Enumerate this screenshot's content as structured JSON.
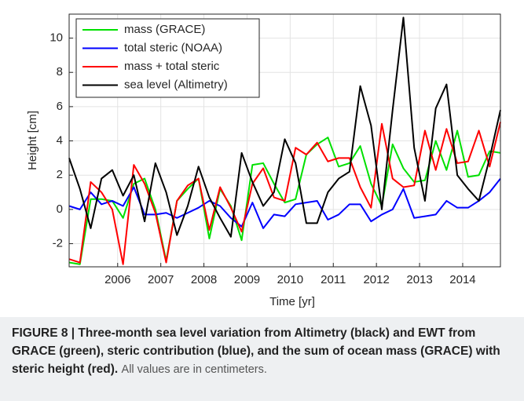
{
  "chart_data": {
    "type": "line",
    "xlabel": "Time [yr]",
    "ylabel": "Height [cm]",
    "x": [
      2004.875,
      2005.125,
      2005.375,
      2005.625,
      2005.875,
      2006.125,
      2006.375,
      2006.625,
      2006.875,
      2007.125,
      2007.375,
      2007.625,
      2007.875,
      2008.125,
      2008.375,
      2008.625,
      2008.875,
      2009.125,
      2009.375,
      2009.625,
      2009.875,
      2010.125,
      2010.375,
      2010.625,
      2010.875,
      2011.125,
      2011.375,
      2011.625,
      2011.875,
      2012.125,
      2012.375,
      2012.625,
      2012.875,
      2013.125,
      2013.375,
      2013.625,
      2013.875,
      2014.125,
      2014.375,
      2014.625,
      2014.875
    ],
    "series": [
      {
        "name": "mass (GRACE)",
        "color": "#00e000",
        "values": [
          -3.1,
          -3.2,
          0.6,
          0.6,
          0.5,
          -0.5,
          1.5,
          1.8,
          0.0,
          -3.0,
          0.5,
          1.2,
          1.8,
          -1.7,
          1.2,
          0.2,
          -1.8,
          2.6,
          2.7,
          1.5,
          0.4,
          0.6,
          3.2,
          3.8,
          4.2,
          2.5,
          2.7,
          3.7,
          1.5,
          0.2,
          3.8,
          2.4,
          1.6,
          1.7,
          4.0,
          2.3,
          4.6,
          1.9,
          2.0,
          3.4,
          3.3
        ]
      },
      {
        "name": "total steric (NOAA)",
        "color": "#0000ff",
        "values": [
          0.2,
          0.0,
          1.0,
          0.3,
          0.5,
          0.2,
          1.3,
          -0.3,
          -0.3,
          -0.2,
          -0.5,
          -0.2,
          0.1,
          0.5,
          0.2,
          -0.5,
          -1.0,
          0.4,
          -1.1,
          -0.3,
          -0.4,
          0.3,
          0.4,
          0.5,
          -0.6,
          -0.3,
          0.3,
          0.3,
          -0.7,
          -0.3,
          0.0,
          1.2,
          -0.5,
          -0.4,
          -0.3,
          0.5,
          0.1,
          0.1,
          0.5,
          1.0,
          1.8
        ]
      },
      {
        "name": "mass + total steric",
        "color": "#ff0000",
        "values": [
          -2.9,
          -3.1,
          1.6,
          1.0,
          0.0,
          -3.2,
          2.6,
          1.5,
          -0.2,
          -3.1,
          0.5,
          1.4,
          1.8,
          -1.2,
          1.3,
          0.1,
          -1.3,
          1.5,
          2.4,
          0.7,
          0.5,
          3.6,
          3.2,
          3.9,
          2.8,
          3.0,
          3.0,
          1.3,
          0.1,
          5.0,
          1.8,
          1.3,
          1.4,
          4.6,
          2.3,
          4.7,
          2.7,
          2.8,
          4.6,
          2.5,
          5.1
        ]
      },
      {
        "name": "sea level (Altimetry)",
        "color": "#000000",
        "values": [
          3.0,
          1.2,
          -1.1,
          1.8,
          2.3,
          0.8,
          2.0,
          -0.7,
          2.7,
          1.0,
          -1.5,
          0.2,
          2.5,
          0.7,
          -0.5,
          -1.6,
          3.3,
          1.6,
          0.2,
          1.0,
          4.1,
          2.7,
          -0.8,
          -0.8,
          1.0,
          1.8,
          2.2,
          7.2,
          4.9,
          0.0,
          5.8,
          11.2,
          3.6,
          0.5,
          5.9,
          7.3,
          2.0,
          1.2,
          0.5,
          3.0,
          5.8
        ]
      }
    ],
    "xlim": [
      2004.875,
      2014.875
    ],
    "ylim": [
      -3.35,
      11.4
    ],
    "xticks": [
      2006,
      2007,
      2008,
      2009,
      2010,
      2011,
      2012,
      2013,
      2014
    ],
    "yticks": [
      -2,
      0,
      2,
      4,
      6,
      8,
      10
    ],
    "grid": true,
    "legend": "upper left"
  },
  "caption": {
    "bold": "FIGURE 8 | Three-month sea level variation from Altimetry (black) and EWT from GRACE (green), steric contribution (blue), and the sum of ocean mass (GRACE) with steric height (red).",
    "text": "All values are in centimeters."
  }
}
